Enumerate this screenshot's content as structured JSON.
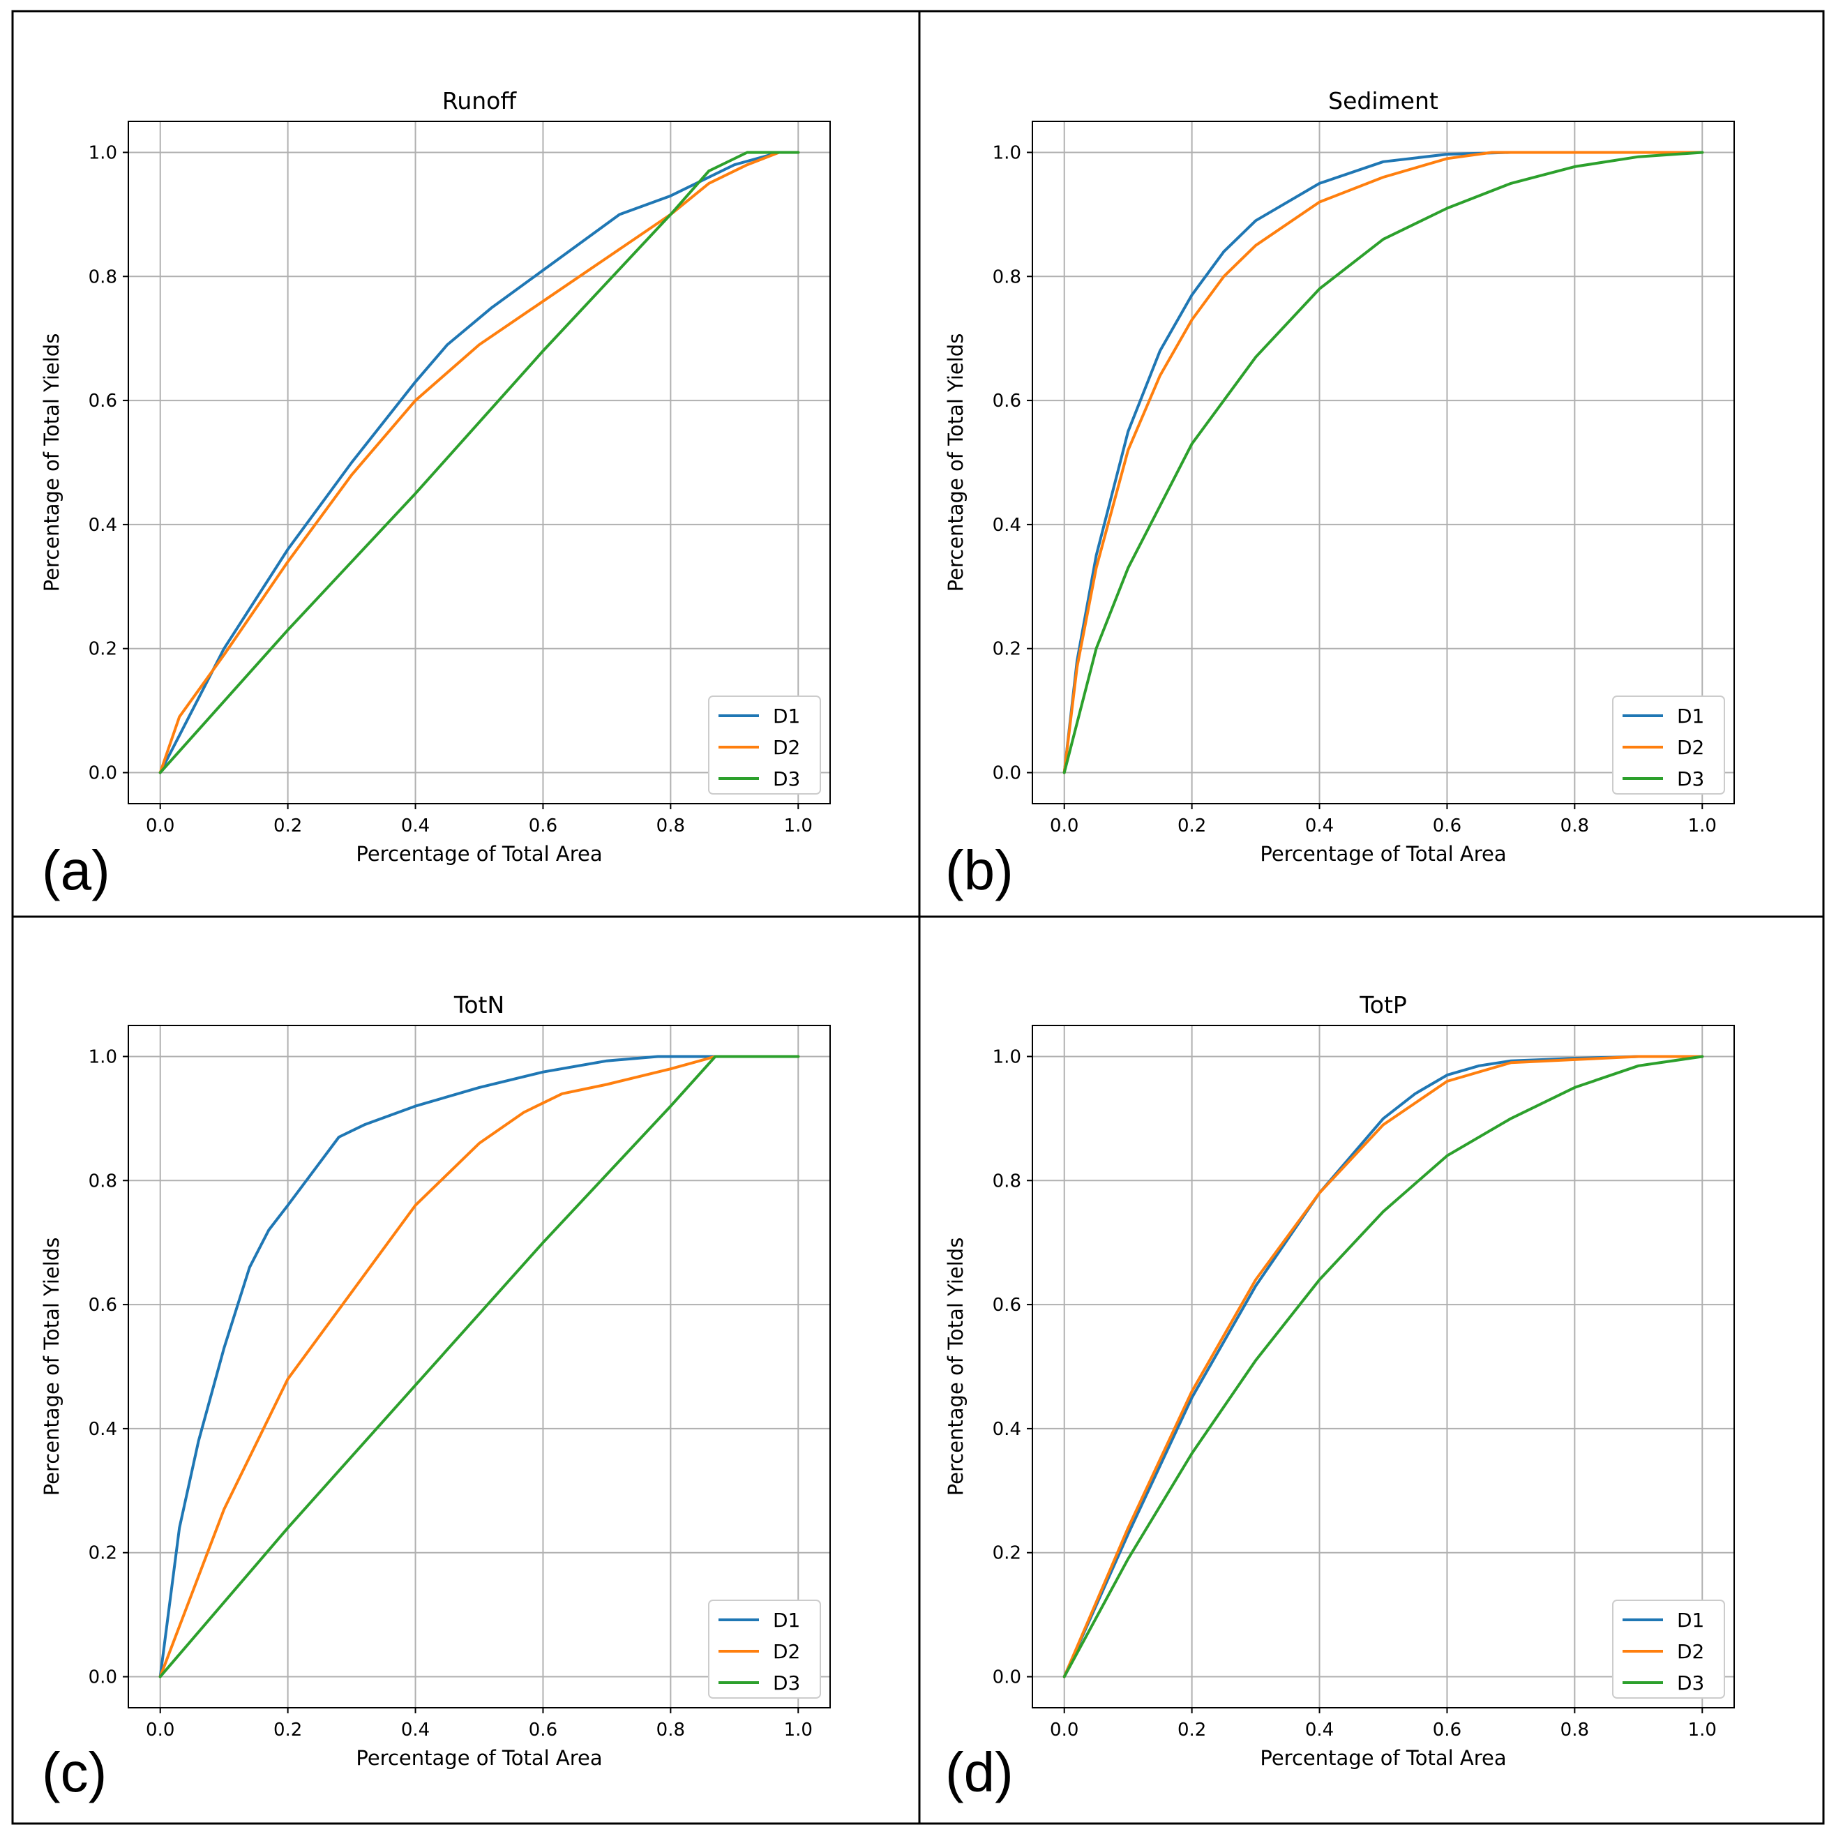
{
  "colors": {
    "D1": "#1f77b4",
    "D2": "#ff7f0e",
    "D3": "#2ca02c"
  },
  "chart_data": [
    {
      "type": "line",
      "panel_label": "(a)",
      "title": "Runoff",
      "xlabel": "Percentage of Total Area",
      "ylabel": "Percentage of Total Yields",
      "xlim": [
        -0.05,
        1.05
      ],
      "ylim": [
        -0.05,
        1.05
      ],
      "xticks": [
        "0.0",
        "0.2",
        "0.4",
        "0.6",
        "0.8",
        "1.0"
      ],
      "yticks": [
        "0.0",
        "0.2",
        "0.4",
        "0.6",
        "0.8",
        "1.0"
      ],
      "legend_position": "lower-right",
      "grid": true,
      "series": [
        {
          "name": "D1",
          "x": [
            0,
            0.05,
            0.1,
            0.2,
            0.3,
            0.4,
            0.45,
            0.52,
            0.6,
            0.72,
            0.8,
            0.9,
            0.97,
            1.0
          ],
          "y": [
            0,
            0.1,
            0.2,
            0.36,
            0.5,
            0.63,
            0.69,
            0.75,
            0.81,
            0.9,
            0.93,
            0.98,
            1.0,
            1.0
          ]
        },
        {
          "name": "D2",
          "x": [
            0,
            0.03,
            0.1,
            0.2,
            0.3,
            0.4,
            0.5,
            0.6,
            0.7,
            0.8,
            0.86,
            0.92,
            0.97,
            1.0
          ],
          "y": [
            0,
            0.09,
            0.19,
            0.34,
            0.48,
            0.6,
            0.69,
            0.76,
            0.83,
            0.9,
            0.95,
            0.98,
            1.0,
            1.0
          ]
        },
        {
          "name": "D3",
          "x": [
            0,
            0.2,
            0.4,
            0.6,
            0.8,
            0.86,
            0.92,
            0.97,
            1.0
          ],
          "y": [
            0,
            0.23,
            0.45,
            0.68,
            0.9,
            0.97,
            1.0,
            1.0,
            1.0
          ]
        }
      ]
    },
    {
      "type": "line",
      "panel_label": "(b)",
      "title": "Sediment",
      "xlabel": "Percentage of Total Area",
      "ylabel": "Percentage of Total Yields",
      "xlim": [
        -0.05,
        1.05
      ],
      "ylim": [
        -0.05,
        1.05
      ],
      "xticks": [
        "0.0",
        "0.2",
        "0.4",
        "0.6",
        "0.8",
        "1.0"
      ],
      "yticks": [
        "0.0",
        "0.2",
        "0.4",
        "0.6",
        "0.8",
        "1.0"
      ],
      "legend_position": "lower-right",
      "grid": true,
      "series": [
        {
          "name": "D1",
          "x": [
            0,
            0.02,
            0.05,
            0.1,
            0.15,
            0.2,
            0.25,
            0.3,
            0.4,
            0.5,
            0.6,
            0.7,
            1.0
          ],
          "y": [
            0,
            0.18,
            0.35,
            0.55,
            0.68,
            0.77,
            0.84,
            0.89,
            0.95,
            0.985,
            0.997,
            1.0,
            1.0
          ]
        },
        {
          "name": "D2",
          "x": [
            0,
            0.02,
            0.05,
            0.1,
            0.15,
            0.2,
            0.25,
            0.3,
            0.4,
            0.5,
            0.6,
            0.67,
            1.0
          ],
          "y": [
            0,
            0.17,
            0.33,
            0.52,
            0.64,
            0.73,
            0.8,
            0.85,
            0.92,
            0.96,
            0.99,
            1.0,
            1.0
          ]
        },
        {
          "name": "D3",
          "x": [
            0,
            0.05,
            0.1,
            0.2,
            0.3,
            0.4,
            0.5,
            0.6,
            0.7,
            0.8,
            0.9,
            1.0
          ],
          "y": [
            0,
            0.2,
            0.33,
            0.53,
            0.67,
            0.78,
            0.86,
            0.91,
            0.95,
            0.977,
            0.993,
            1.0
          ]
        }
      ]
    },
    {
      "type": "line",
      "panel_label": "(c)",
      "title": "TotN",
      "xlabel": "Percentage of Total Area",
      "ylabel": "Percentage of Total Yields",
      "xlim": [
        -0.05,
        1.05
      ],
      "ylim": [
        -0.05,
        1.05
      ],
      "xticks": [
        "0.0",
        "0.2",
        "0.4",
        "0.6",
        "0.8",
        "1.0"
      ],
      "yticks": [
        "0.0",
        "0.2",
        "0.4",
        "0.6",
        "0.8",
        "1.0"
      ],
      "legend_position": "lower-right",
      "grid": true,
      "series": [
        {
          "name": "D1",
          "x": [
            0,
            0.03,
            0.06,
            0.1,
            0.14,
            0.17,
            0.2,
            0.28,
            0.32,
            0.4,
            0.5,
            0.6,
            0.7,
            0.78,
            1.0
          ],
          "y": [
            0,
            0.24,
            0.38,
            0.53,
            0.66,
            0.72,
            0.76,
            0.87,
            0.89,
            0.92,
            0.95,
            0.975,
            0.993,
            1.0,
            1.0
          ]
        },
        {
          "name": "D2",
          "x": [
            0,
            0.1,
            0.2,
            0.3,
            0.4,
            0.5,
            0.57,
            0.63,
            0.7,
            0.8,
            0.87,
            1.0
          ],
          "y": [
            0,
            0.27,
            0.48,
            0.62,
            0.76,
            0.86,
            0.91,
            0.94,
            0.955,
            0.98,
            1.0,
            1.0
          ]
        },
        {
          "name": "D3",
          "x": [
            0,
            0.2,
            0.4,
            0.6,
            0.8,
            0.87,
            1.0
          ],
          "y": [
            0,
            0.24,
            0.47,
            0.7,
            0.92,
            1.0,
            1.0
          ]
        }
      ]
    },
    {
      "type": "line",
      "panel_label": "(d)",
      "title": "TotP",
      "xlabel": "Percentage of Total Area",
      "ylabel": "Percentage of Total Yields",
      "xlim": [
        -0.05,
        1.05
      ],
      "ylim": [
        -0.05,
        1.05
      ],
      "xticks": [
        "0.0",
        "0.2",
        "0.4",
        "0.6",
        "0.8",
        "1.0"
      ],
      "yticks": [
        "0.0",
        "0.2",
        "0.4",
        "0.6",
        "0.8",
        "1.0"
      ],
      "legend_position": "lower-right",
      "grid": true,
      "series": [
        {
          "name": "D1",
          "x": [
            0,
            0.1,
            0.2,
            0.3,
            0.4,
            0.5,
            0.55,
            0.6,
            0.65,
            0.7,
            0.8,
            0.9,
            1.0
          ],
          "y": [
            0,
            0.23,
            0.45,
            0.63,
            0.78,
            0.9,
            0.94,
            0.97,
            0.985,
            0.993,
            0.997,
            1.0,
            1.0
          ]
        },
        {
          "name": "D2",
          "x": [
            0,
            0.1,
            0.2,
            0.3,
            0.4,
            0.5,
            0.6,
            0.7,
            0.8,
            0.9,
            1.0
          ],
          "y": [
            0,
            0.24,
            0.46,
            0.64,
            0.78,
            0.89,
            0.96,
            0.99,
            0.995,
            1.0,
            1.0
          ]
        },
        {
          "name": "D3",
          "x": [
            0,
            0.1,
            0.2,
            0.3,
            0.4,
            0.5,
            0.6,
            0.7,
            0.8,
            0.9,
            1.0
          ],
          "y": [
            0,
            0.19,
            0.36,
            0.51,
            0.64,
            0.75,
            0.84,
            0.9,
            0.95,
            0.985,
            1.0
          ]
        }
      ]
    }
  ]
}
